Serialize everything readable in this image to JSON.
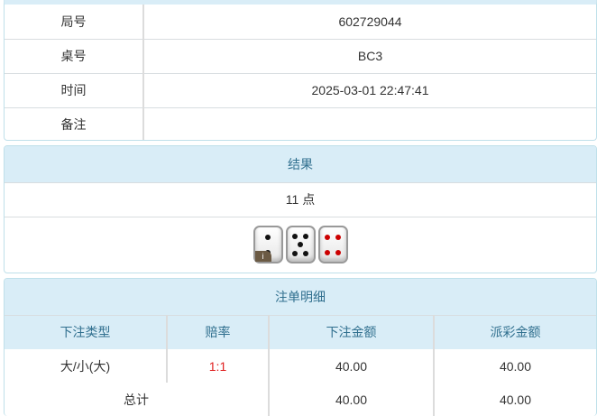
{
  "info": {
    "rows": [
      {
        "label": "局号",
        "value": "602729044"
      },
      {
        "label": "桌号",
        "value": "BC3"
      },
      {
        "label": "时间",
        "value": "2025-03-01 22:47:41"
      },
      {
        "label": "备注",
        "value": ""
      }
    ]
  },
  "result": {
    "title": "结果",
    "points": "11 点",
    "dice": [
      2,
      5,
      4
    ],
    "info_badge": "i"
  },
  "bets": {
    "title": "注单明细",
    "headers": [
      "下注类型",
      "赔率",
      "下注金额",
      "派彩金额"
    ],
    "rows": [
      {
        "type": "大/小(大)",
        "odds": "1:1",
        "amount": "40.00",
        "payout": "40.00"
      }
    ],
    "total": {
      "label": "总计",
      "amount": "40.00",
      "payout": "40.00"
    }
  },
  "colors": {
    "header_bg": "#d9edf7",
    "header_text": "#31708f",
    "odds": "#e02020"
  }
}
